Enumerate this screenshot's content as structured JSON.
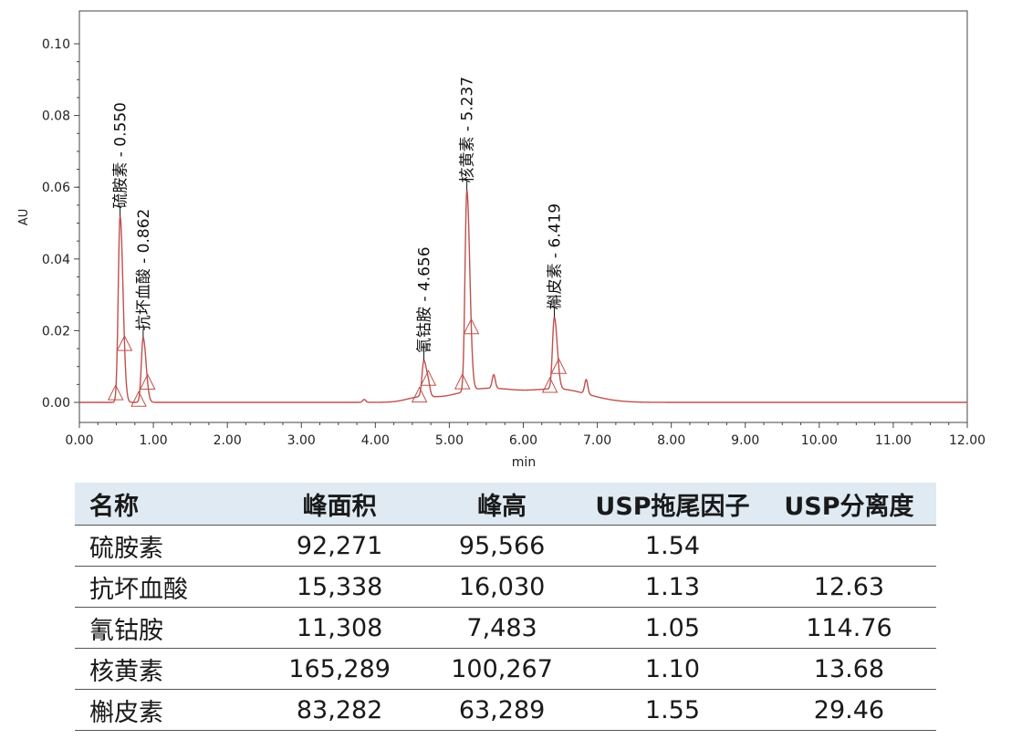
{
  "chart_data": {
    "type": "line",
    "xlabel": "min",
    "ylabel": "AU",
    "xlim": [
      0,
      12
    ],
    "ylim": [
      -0.005,
      0.11
    ],
    "x_ticks": [
      "0.00",
      "1.00",
      "2.00",
      "3.00",
      "4.00",
      "5.00",
      "6.00",
      "7.00",
      "8.00",
      "9.00",
      "10.00",
      "11.00",
      "12.00"
    ],
    "y_ticks": [
      "0.00",
      "0.02",
      "0.04",
      "0.06",
      "0.08",
      "0.10"
    ],
    "y_tick_values": [
      0,
      0.02,
      0.04,
      0.06,
      0.08,
      0.1
    ],
    "line_color": "#c0504d",
    "peaks": [
      {
        "name": "硫胺素",
        "rt": 0.55,
        "rt_label": "0.550",
        "height": 0.052,
        "width": 0.035,
        "label_text": "硫胺素 - 0.550"
      },
      {
        "name": "抗坏血酸",
        "rt": 0.862,
        "rt_label": "0.862",
        "height": 0.018,
        "width": 0.035,
        "label_text": "抗坏血酸 - 0.862"
      },
      {
        "name": "氰钴胺",
        "rt": 4.656,
        "rt_label": "4.656",
        "height": 0.01,
        "width": 0.035,
        "label_text": "氰钴胺 - 4.656"
      },
      {
        "name": "核黄素",
        "rt": 5.237,
        "rt_label": "5.237",
        "height": 0.056,
        "width": 0.035,
        "label_text": "核黄素 - 5.237"
      },
      {
        "name": "槲皮素",
        "rt": 6.419,
        "rt_label": "6.419",
        "height": 0.02,
        "width": 0.035,
        "label_text": "槲皮素 - 6.419"
      }
    ],
    "minor_features": [
      {
        "x": 3.85,
        "y": 0.0008
      },
      {
        "x": 4.72,
        "y": 0.002
      },
      {
        "x": 5.6,
        "y": 0.0038
      },
      {
        "x": 6.85,
        "y": 0.004
      }
    ],
    "baseline_bumps": [
      {
        "center": 5.5,
        "amp": 0.0038,
        "width": 0.6
      },
      {
        "center": 6.5,
        "amp": 0.0035,
        "width": 0.55
      },
      {
        "center": 4.6,
        "amp": 0.0012,
        "width": 0.25
      }
    ]
  },
  "table": {
    "headers": [
      "名称",
      "峰面积",
      "峰高",
      "USP拖尾因子",
      "USP分离度"
    ],
    "rows": [
      [
        "硫胺素",
        "92,271",
        "95,566",
        "1.54",
        ""
      ],
      [
        "抗坏血酸",
        "15,338",
        "16,030",
        "1.13",
        "12.63"
      ],
      [
        "氰钴胺",
        "11,308",
        "7,483",
        "1.05",
        "114.76"
      ],
      [
        "核黄素",
        "165,289",
        "100,267",
        "1.10",
        "13.68"
      ],
      [
        "槲皮素",
        "83,282",
        "63,289",
        "1.55",
        "29.46"
      ]
    ]
  }
}
